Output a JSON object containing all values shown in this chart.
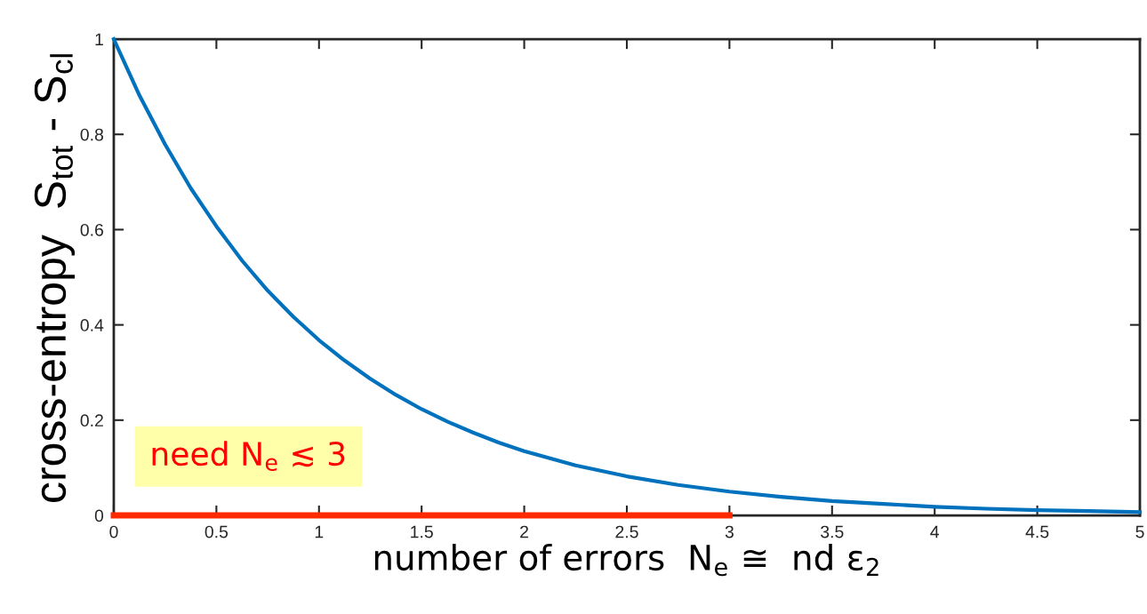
{
  "chart_data": {
    "type": "line",
    "xlabel": "number of errors  N$_{e}$ ≅  nd ε$_{2}$",
    "ylabel": "cross-entropy  S$_{tot}$ - S$_{cl}$",
    "x": [
      0,
      0.125,
      0.25,
      0.375,
      0.5,
      0.625,
      0.75,
      0.875,
      1,
      1.125,
      1.25,
      1.375,
      1.5,
      1.625,
      1.75,
      1.875,
      2,
      2.25,
      2.5,
      2.75,
      3,
      3.25,
      3.5,
      3.75,
      4,
      4.25,
      4.5,
      4.75,
      5
    ],
    "series": [
      {
        "color": "#0072bd",
        "values": [
          1,
          0.882,
          0.779,
          0.687,
          0.607,
          0.535,
          0.472,
          0.417,
          0.368,
          0.325,
          0.287,
          0.253,
          0.223,
          0.197,
          0.174,
          0.153,
          0.135,
          0.105,
          0.082,
          0.064,
          0.05,
          0.039,
          0.03,
          0.024,
          0.018,
          0.014,
          0.011,
          0.009,
          0.007
        ]
      },
      {
        "color": "#ff2a00",
        "x": [
          0,
          3
        ],
        "values": [
          0,
          0
        ]
      }
    ],
    "annotations": [
      "need N$_{e}$ ≲ 3"
    ],
    "xlim": [
      0,
      5
    ],
    "xticks": [
      0,
      0.5,
      1,
      1.5,
      2,
      2.5,
      3,
      3.5,
      4,
      4.5,
      5
    ],
    "ylim": [
      0,
      1
    ],
    "yticks": [
      0,
      0.2,
      0.4,
      0.6,
      0.8,
      1
    ],
    "marker": "none",
    "line_style": "solid"
  }
}
